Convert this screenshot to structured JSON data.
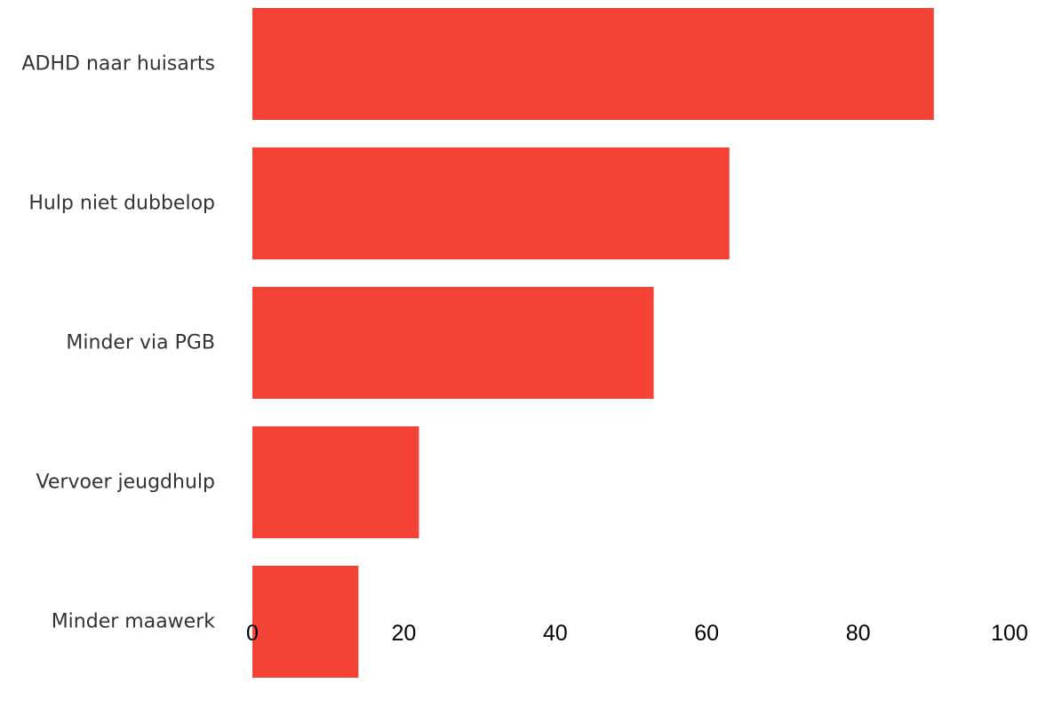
{
  "chart_data": {
    "type": "bar",
    "orientation": "horizontal",
    "categories": [
      "ADHD naar huisarts",
      "Hulp niet dubbelop",
      "Minder via PGB",
      "Vervoer jeugdhulp",
      "Minder maawerk"
    ],
    "values": [
      90,
      63,
      53,
      22,
      14
    ],
    "xlim": [
      0,
      100
    ],
    "xticks": [
      "0",
      "20",
      "40",
      "60",
      "80",
      "100"
    ],
    "title": "",
    "xlabel": "",
    "ylabel": "",
    "grid": false,
    "legend": "none",
    "bar_color": "#f44336"
  }
}
